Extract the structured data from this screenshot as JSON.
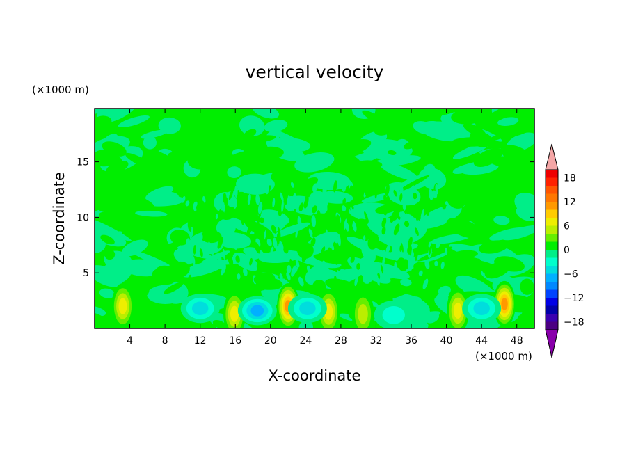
{
  "chart_data": {
    "type": "heatmap",
    "title": "vertical velocity",
    "xlabel": "X-coordinate",
    "ylabel": "Z-coordinate",
    "x_unit": "(×1000 m)",
    "y_unit": "(×1000 m)",
    "xlim": [
      0,
      50
    ],
    "ylim": [
      0,
      19.8
    ],
    "x_ticks": [
      4,
      8,
      12,
      16,
      20,
      24,
      28,
      32,
      36,
      40,
      44,
      48
    ],
    "y_ticks": [
      5,
      10,
      15
    ],
    "colorbar": {
      "levels": [
        -20,
        -18,
        -16,
        -14,
        -12,
        -10,
        -8,
        -6,
        -4,
        -2,
        0,
        2,
        4,
        6,
        8,
        10,
        12,
        14,
        16,
        18,
        20
      ],
      "colors": [
        "#4b0082",
        "#3a00b0",
        "#0000aa",
        "#0000e6",
        "#0044ff",
        "#0088ff",
        "#00b0ff",
        "#00dddd",
        "#00ffcc",
        "#00ee88",
        "#00ee00",
        "#66ee00",
        "#bbee00",
        "#eeee00",
        "#ffcc00",
        "#ff9900",
        "#ff7700",
        "#ff5500",
        "#ff2200",
        "#ee0000"
      ],
      "under_color": "#8800aa",
      "over_color": "#f4a6a6",
      "tick_labels": [
        "18",
        "12",
        "6",
        "0",
        "−6",
        "−12",
        "−18"
      ],
      "tick_values": [
        18,
        12,
        6,
        0,
        -6,
        -12,
        -18
      ],
      "extend": "both"
    },
    "features": [
      {
        "x": 3.2,
        "z": 2.0,
        "w": 6
      },
      {
        "x": 15.9,
        "z": 1.3,
        "w": 5
      },
      {
        "x": 22.0,
        "z": 2.0,
        "w": 9
      },
      {
        "x": 26.6,
        "z": 1.5,
        "w": 6
      },
      {
        "x": 30.5,
        "z": 1.3,
        "w": 3
      },
      {
        "x": 41.3,
        "z": 1.6,
        "w": 5
      },
      {
        "x": 46.6,
        "z": 2.2,
        "w": 10
      },
      {
        "x": 12.0,
        "z": 1.8,
        "w": -4
      },
      {
        "x": 18.5,
        "z": 1.6,
        "w": -5
      },
      {
        "x": 24.2,
        "z": 1.8,
        "w": -4
      },
      {
        "x": 44.0,
        "z": 1.8,
        "w": -4
      },
      {
        "x": 34.0,
        "z": 1.2,
        "w": -2
      }
    ],
    "legend": "colorbar right"
  }
}
